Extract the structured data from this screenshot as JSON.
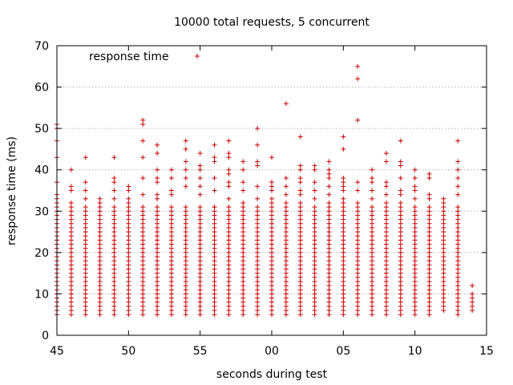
{
  "chart_data": {
    "type": "scatter",
    "title": "10000 total requests, 5 concurrent",
    "xlabel": "seconds during test",
    "ylabel": "response time (ms)",
    "xlim": [
      45,
      75
    ],
    "ylim": [
      0,
      70
    ],
    "x_ticks": [
      {
        "value": 45,
        "label": "45"
      },
      {
        "value": 50,
        "label": "50"
      },
      {
        "value": 55,
        "label": "55"
      },
      {
        "value": 60,
        "label": "00"
      },
      {
        "value": 65,
        "label": "05"
      },
      {
        "value": 70,
        "label": "10"
      },
      {
        "value": 75,
        "label": "15"
      }
    ],
    "y_ticks": [
      0,
      10,
      20,
      30,
      40,
      50,
      60,
      70
    ],
    "grid": "horizontal dotted",
    "legend_position": "top-left",
    "color": "#cc0000",
    "series": [
      {
        "name": "response time",
        "marker": "+",
        "seconds": [
          45,
          46,
          47,
          48,
          49,
          50,
          51,
          52,
          53,
          54,
          55,
          56,
          57,
          58,
          59,
          60,
          61,
          62,
          63,
          64,
          65,
          66,
          67,
          68,
          69,
          70,
          71,
          72,
          73,
          74
        ],
        "min": [
          5,
          5,
          5,
          5,
          5,
          5,
          5,
          5,
          5,
          5,
          5,
          5,
          5,
          5,
          5,
          5,
          5,
          5,
          5,
          5,
          5,
          5,
          5,
          5,
          5,
          5,
          5,
          6,
          5,
          6
        ],
        "dense_max": [
          34,
          32,
          31,
          31,
          31,
          31,
          31,
          31,
          31,
          31,
          31,
          31,
          31,
          31,
          31,
          31,
          31,
          31,
          31,
          31,
          31,
          31,
          31,
          31,
          31,
          31,
          31,
          31,
          31,
          8
        ],
        "outliers": [
          [
            45,
            37
          ],
          [
            45,
            43
          ],
          [
            45,
            47
          ],
          [
            45,
            50
          ],
          [
            45,
            51
          ],
          [
            46,
            35
          ],
          [
            46,
            36
          ],
          [
            46,
            40
          ],
          [
            47,
            33
          ],
          [
            47,
            35
          ],
          [
            47,
            37
          ],
          [
            47,
            43
          ],
          [
            48,
            32
          ],
          [
            48,
            33
          ],
          [
            49,
            33
          ],
          [
            49,
            35
          ],
          [
            49,
            37
          ],
          [
            49,
            38
          ],
          [
            49,
            43
          ],
          [
            50,
            32
          ],
          [
            50,
            33
          ],
          [
            50,
            35
          ],
          [
            50,
            36
          ],
          [
            51,
            34
          ],
          [
            51,
            38
          ],
          [
            51,
            43
          ],
          [
            51,
            47
          ],
          [
            51,
            51
          ],
          [
            51,
            52
          ],
          [
            52,
            33
          ],
          [
            52,
            34
          ],
          [
            52,
            37
          ],
          [
            52,
            38
          ],
          [
            52,
            40
          ],
          [
            52,
            44
          ],
          [
            52,
            46
          ],
          [
            53,
            34
          ],
          [
            53,
            35
          ],
          [
            53,
            38
          ],
          [
            53,
            40
          ],
          [
            54,
            36
          ],
          [
            54,
            38
          ],
          [
            54,
            40
          ],
          [
            54,
            42
          ],
          [
            54,
            45
          ],
          [
            54,
            47
          ],
          [
            55,
            34
          ],
          [
            55,
            36
          ],
          [
            55,
            38
          ],
          [
            55,
            40
          ],
          [
            55,
            41
          ],
          [
            55,
            44
          ],
          [
            56,
            31
          ],
          [
            56,
            35
          ],
          [
            56,
            38
          ],
          [
            56,
            42
          ],
          [
            56,
            43
          ],
          [
            56,
            46
          ],
          [
            57,
            33
          ],
          [
            57,
            36
          ],
          [
            57,
            37
          ],
          [
            57,
            39
          ],
          [
            57,
            40
          ],
          [
            57,
            43
          ],
          [
            57,
            44
          ],
          [
            57,
            47
          ],
          [
            58,
            32
          ],
          [
            58,
            35
          ],
          [
            58,
            37
          ],
          [
            58,
            40
          ],
          [
            58,
            42
          ],
          [
            59,
            33
          ],
          [
            59,
            36
          ],
          [
            59,
            41
          ],
          [
            59,
            42
          ],
          [
            59,
            46
          ],
          [
            59,
            50
          ],
          [
            60,
            32
          ],
          [
            60,
            33
          ],
          [
            60,
            35
          ],
          [
            60,
            36
          ],
          [
            60,
            37
          ],
          [
            60,
            43
          ],
          [
            61,
            32
          ],
          [
            61,
            34
          ],
          [
            61,
            36
          ],
          [
            61,
            38
          ],
          [
            61,
            56
          ],
          [
            62,
            32
          ],
          [
            62,
            34
          ],
          [
            62,
            35
          ],
          [
            62,
            37
          ],
          [
            62,
            38
          ],
          [
            62,
            40
          ],
          [
            62,
            41
          ],
          [
            62,
            48
          ],
          [
            63,
            33
          ],
          [
            63,
            35
          ],
          [
            63,
            37
          ],
          [
            63,
            40
          ],
          [
            63,
            41
          ],
          [
            64,
            32
          ],
          [
            64,
            34
          ],
          [
            64,
            36
          ],
          [
            64,
            38
          ],
          [
            64,
            39
          ],
          [
            64,
            40
          ],
          [
            64,
            42
          ],
          [
            65,
            32
          ],
          [
            65,
            33
          ],
          [
            65,
            35
          ],
          [
            65,
            36
          ],
          [
            65,
            37
          ],
          [
            65,
            38
          ],
          [
            65,
            45
          ],
          [
            65,
            48
          ],
          [
            66,
            32
          ],
          [
            66,
            35
          ],
          [
            66,
            37
          ],
          [
            66,
            52
          ],
          [
            66,
            62
          ],
          [
            66,
            65
          ],
          [
            67,
            33
          ],
          [
            67,
            35
          ],
          [
            67,
            37
          ],
          [
            67,
            38
          ],
          [
            67,
            40
          ],
          [
            68,
            32
          ],
          [
            68,
            34
          ],
          [
            68,
            36
          ],
          [
            68,
            37
          ],
          [
            68,
            42
          ],
          [
            68,
            44
          ],
          [
            69,
            32
          ],
          [
            69,
            34
          ],
          [
            69,
            35
          ],
          [
            69,
            38
          ],
          [
            69,
            41
          ],
          [
            69,
            42
          ],
          [
            69,
            47
          ],
          [
            70,
            33
          ],
          [
            70,
            35
          ],
          [
            70,
            36
          ],
          [
            70,
            38
          ],
          [
            70,
            40
          ],
          [
            71,
            33
          ],
          [
            71,
            34
          ],
          [
            71,
            38
          ],
          [
            71,
            39
          ],
          [
            72,
            32
          ],
          [
            72,
            33
          ],
          [
            73,
            34
          ],
          [
            73,
            36
          ],
          [
            73,
            38
          ],
          [
            73,
            40
          ],
          [
            73,
            42
          ],
          [
            73,
            47
          ],
          [
            74,
            9
          ],
          [
            74,
            10
          ],
          [
            74,
            12
          ]
        ]
      }
    ]
  }
}
